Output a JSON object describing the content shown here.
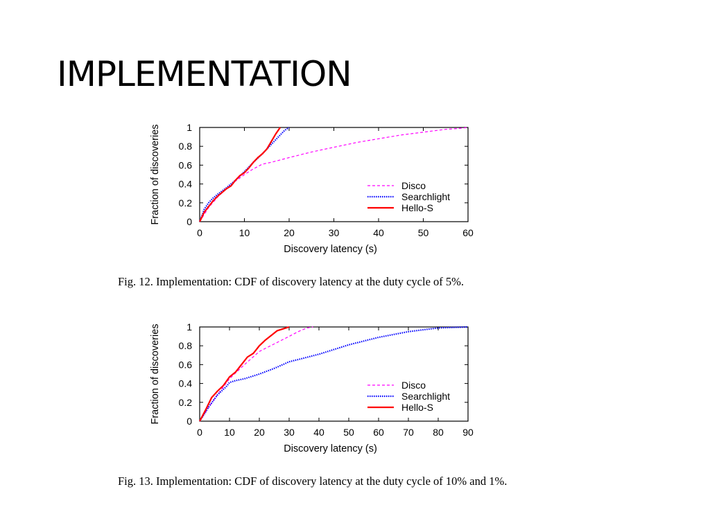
{
  "slide": {
    "title": "IMPLEMENTATION"
  },
  "captions": [
    "Fig. 12.  Implementation: CDF of discovery latency at the duty cycle of 5%.",
    "Fig. 13.  Implementation: CDF of discovery latency at the duty cycle of 10% and 1%."
  ],
  "chart_data": [
    {
      "type": "line",
      "xlabel": "Discovery latency (s)",
      "ylabel": "Fraction of discoveries",
      "xlim": [
        0,
        60
      ],
      "ylim": [
        0,
        1
      ],
      "xticks": [
        0,
        10,
        20,
        30,
        40,
        50,
        60
      ],
      "yticks": [
        0,
        0.2,
        0.4,
        0.6,
        0.8,
        1
      ],
      "grid": false,
      "legend": "right",
      "series": [
        {
          "name": "Disco",
          "color": "#ff00ff",
          "style": "dashed",
          "x": [
            0,
            2,
            4,
            6,
            8,
            10,
            12,
            14,
            16,
            20,
            25,
            30,
            35,
            40,
            45,
            50,
            55,
            58,
            60
          ],
          "y": [
            0,
            0.15,
            0.26,
            0.35,
            0.43,
            0.5,
            0.56,
            0.61,
            0.63,
            0.68,
            0.74,
            0.79,
            0.84,
            0.88,
            0.92,
            0.95,
            0.98,
            0.99,
            1.0
          ]
        },
        {
          "name": "Searchlight",
          "color": "#0000ff",
          "style": "dotted",
          "x": [
            0,
            1,
            2,
            3,
            4,
            6,
            8,
            10,
            12,
            14,
            16,
            18,
            19,
            20
          ],
          "y": [
            0,
            0.13,
            0.2,
            0.25,
            0.29,
            0.36,
            0.44,
            0.53,
            0.63,
            0.72,
            0.82,
            0.92,
            0.97,
            1.0
          ]
        },
        {
          "name": "Hello-S",
          "color": "#ff0000",
          "style": "solid",
          "x": [
            0,
            1,
            2,
            3,
            4,
            5,
            6,
            7,
            8,
            9,
            10,
            11,
            12,
            13,
            14,
            15,
            16,
            17,
            18
          ],
          "y": [
            0,
            0.1,
            0.16,
            0.22,
            0.27,
            0.31,
            0.35,
            0.38,
            0.44,
            0.49,
            0.52,
            0.57,
            0.63,
            0.68,
            0.72,
            0.77,
            0.85,
            0.93,
            1.0
          ]
        }
      ]
    },
    {
      "type": "line",
      "xlabel": "Discovery latency (s)",
      "ylabel": "Fraction of discoveries",
      "xlim": [
        0,
        90
      ],
      "ylim": [
        0,
        1
      ],
      "xticks": [
        0,
        10,
        20,
        30,
        40,
        50,
        60,
        70,
        80,
        90
      ],
      "yticks": [
        0,
        0.2,
        0.4,
        0.6,
        0.8,
        1
      ],
      "grid": false,
      "legend": "right",
      "series": [
        {
          "name": "Disco",
          "color": "#ff00ff",
          "style": "dashed",
          "x": [
            0,
            5,
            10,
            15,
            20,
            25,
            30,
            33,
            36,
            38
          ],
          "y": [
            0,
            0.24,
            0.45,
            0.6,
            0.74,
            0.82,
            0.9,
            0.95,
            0.99,
            1.0
          ]
        },
        {
          "name": "Searchlight",
          "color": "#0000ff",
          "style": "dotted",
          "x": [
            0,
            3,
            6,
            9,
            10,
            12,
            15,
            20,
            25,
            30,
            35,
            40,
            45,
            50,
            55,
            60,
            65,
            70,
            75,
            80,
            85,
            90
          ],
          "y": [
            0,
            0.15,
            0.28,
            0.37,
            0.41,
            0.43,
            0.45,
            0.5,
            0.56,
            0.63,
            0.67,
            0.71,
            0.76,
            0.81,
            0.85,
            0.89,
            0.92,
            0.95,
            0.97,
            0.99,
            0.995,
            1.0
          ]
        },
        {
          "name": "Hello-S",
          "color": "#ff0000",
          "style": "solid",
          "x": [
            0,
            2,
            4,
            6,
            8,
            10,
            12,
            14,
            16,
            18,
            20,
            22,
            24,
            26,
            28,
            30
          ],
          "y": [
            0,
            0.12,
            0.25,
            0.32,
            0.38,
            0.47,
            0.52,
            0.6,
            0.68,
            0.72,
            0.8,
            0.86,
            0.91,
            0.96,
            0.98,
            1.0
          ]
        }
      ]
    }
  ]
}
